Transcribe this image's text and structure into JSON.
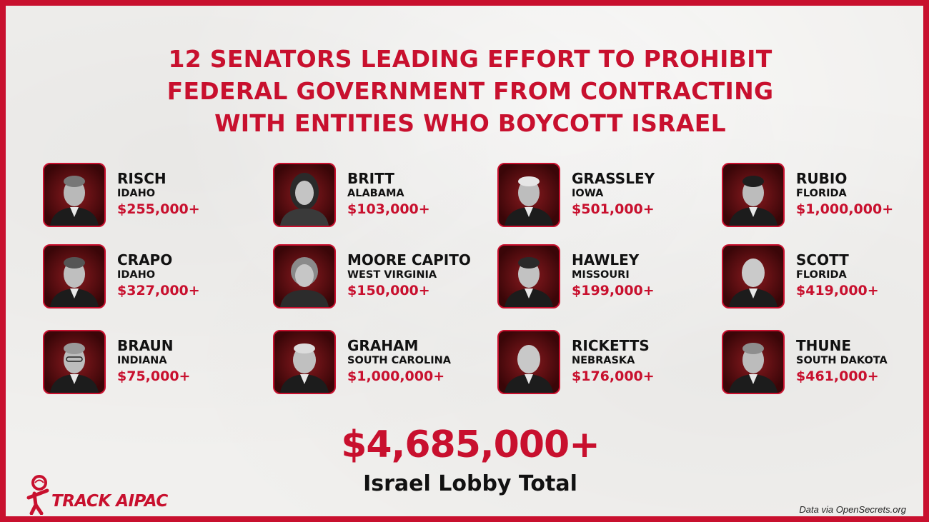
{
  "headline": {
    "lines": [
      "12 SENATORS LEADING EFFORT TO PROHIBIT",
      "FEDERAL GOVERNMENT FROM CONTRACTING",
      "WITH ENTITIES WHO BOYCOTT ISRAEL"
    ]
  },
  "senators": [
    {
      "name": "RISCH",
      "state": "IDAHO",
      "amount": "$255,000+"
    },
    {
      "name": "BRITT",
      "state": "ALABAMA",
      "amount": "$103,000+"
    },
    {
      "name": "GRASSLEY",
      "state": "IOWA",
      "amount": "$501,000+"
    },
    {
      "name": "RUBIO",
      "state": "FLORIDA",
      "amount": "$1,000,000+"
    },
    {
      "name": "CRAPO",
      "state": "IDAHO",
      "amount": "$327,000+"
    },
    {
      "name": "MOORE CAPITO",
      "state": "WEST VIRGINIA",
      "amount": "$150,000+"
    },
    {
      "name": "HAWLEY",
      "state": "MISSOURI",
      "amount": "$199,000+"
    },
    {
      "name": "SCOTT",
      "state": "FLORIDA",
      "amount": "$419,000+"
    },
    {
      "name": "BRAUN",
      "state": "INDIANA",
      "amount": "$75,000+"
    },
    {
      "name": "GRAHAM",
      "state": "SOUTH CAROLINA",
      "amount": "$1,000,000+"
    },
    {
      "name": "RICKETTS",
      "state": "NEBRASKA",
      "amount": "$176,000+"
    },
    {
      "name": "THUNE",
      "state": "SOUTH DAKOTA",
      "amount": "$461,000+"
    }
  ],
  "total": {
    "amount": "$4,685,000+",
    "label": "Israel Lobby Total"
  },
  "logo": {
    "text": "TRACK AIPAC",
    "icon": "magnifier-person-icon"
  },
  "source": "Data via OpenSecrets.org",
  "colors": {
    "accent": "#c8102e",
    "text": "#111111",
    "background": "#f1f0ee"
  }
}
